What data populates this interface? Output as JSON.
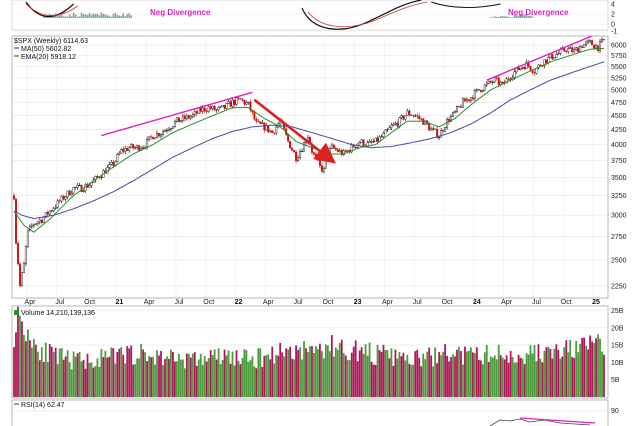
{
  "chart_data": {
    "type": "candlestick",
    "frequency": "weekly",
    "x_axis": {
      "labels": [
        "Apr",
        "Jul",
        "Oct",
        "21",
        "Apr",
        "Jul",
        "Oct",
        "22",
        "Apr",
        "Jul",
        "Oct",
        "23",
        "Apr",
        "Jul",
        "Oct",
        "24",
        "Apr",
        "Jul",
        "Oct",
        "25"
      ],
      "bold": [
        false,
        false,
        false,
        true,
        false,
        false,
        false,
        true,
        false,
        false,
        false,
        true,
        false,
        false,
        false,
        true,
        false,
        false,
        false,
        true
      ]
    },
    "macd_panel": {
      "yticks": [
        "4",
        "2",
        "0",
        "-1"
      ],
      "annotations": [
        {
          "text": "Neg Divergence"
        },
        {
          "text": "Neg Divergence"
        }
      ]
    },
    "price_panel": {
      "legend": [
        {
          "label": "$SPX (Weekly) 6114.63",
          "color": "#000000"
        },
        {
          "label": "MA(50) 5602.82",
          "color": "#4a4a9c"
        },
        {
          "label": "EMA(20) 5918.12",
          "color": "#2e8b2e"
        }
      ],
      "yticks": [
        6000,
        5750,
        5500,
        5250,
        5000,
        4750,
        4500,
        4250,
        4000,
        3750,
        3500,
        3250,
        3000,
        2750,
        2500,
        2250
      ],
      "ylim": [
        2150,
        6200
      ],
      "scale": "log",
      "price_anchors": [
        [
          0,
          3250
        ],
        [
          1,
          2700
        ],
        [
          3,
          2250
        ],
        [
          5,
          2450
        ],
        [
          7,
          2800
        ],
        [
          10,
          2900
        ],
        [
          14,
          2950
        ],
        [
          18,
          3050
        ],
        [
          22,
          3150
        ],
        [
          26,
          3250
        ],
        [
          30,
          3350
        ],
        [
          34,
          3350
        ],
        [
          38,
          3400
        ],
        [
          42,
          3500
        ],
        [
          46,
          3600
        ],
        [
          50,
          3700
        ],
        [
          54,
          3900
        ],
        [
          58,
          3950
        ],
        [
          62,
          3950
        ],
        [
          66,
          4000
        ],
        [
          70,
          4150
        ],
        [
          74,
          4200
        ],
        [
          78,
          4300
        ],
        [
          82,
          4400
        ],
        [
          86,
          4450
        ],
        [
          90,
          4500
        ],
        [
          94,
          4600
        ],
        [
          98,
          4650
        ],
        [
          102,
          4600
        ],
        [
          106,
          4650
        ],
        [
          110,
          4750
        ],
        [
          114,
          4800
        ],
        [
          118,
          4700
        ],
        [
          122,
          4350
        ],
        [
          126,
          4300
        ],
        [
          130,
          4200
        ],
        [
          134,
          4400
        ],
        [
          138,
          4050
        ],
        [
          142,
          3800
        ],
        [
          145,
          3950
        ],
        [
          148,
          4150
        ],
        [
          150,
          3900
        ],
        [
          152,
          3750
        ],
        [
          154,
          3650
        ],
        [
          156,
          3600
        ],
        [
          158,
          3850
        ],
        [
          160,
          3950
        ],
        [
          163,
          3900
        ],
        [
          166,
          3850
        ],
        [
          170,
          3950
        ],
        [
          174,
          4050
        ],
        [
          178,
          4000
        ],
        [
          182,
          4050
        ],
        [
          186,
          4150
        ],
        [
          190,
          4300
        ],
        [
          194,
          4400
        ],
        [
          198,
          4550
        ],
        [
          202,
          4500
        ],
        [
          206,
          4400
        ],
        [
          210,
          4250
        ],
        [
          214,
          4150
        ],
        [
          218,
          4400
        ],
        [
          222,
          4550
        ],
        [
          226,
          4750
        ],
        [
          230,
          4850
        ],
        [
          234,
          5000
        ],
        [
          238,
          5100
        ],
        [
          242,
          5200
        ],
        [
          246,
          5100
        ],
        [
          250,
          5300
        ],
        [
          254,
          5450
        ],
        [
          258,
          5550
        ],
        [
          262,
          5400
        ],
        [
          266,
          5600
        ],
        [
          270,
          5700
        ],
        [
          274,
          5800
        ],
        [
          278,
          5900
        ],
        [
          282,
          5850
        ],
        [
          286,
          6000
        ],
        [
          290,
          6050
        ],
        [
          294,
          5950
        ],
        [
          297,
          6114
        ]
      ],
      "ma50_anchors": [
        [
          0,
          3050
        ],
        [
          4,
          3000
        ],
        [
          10,
          2960
        ],
        [
          20,
          3000
        ],
        [
          30,
          3080
        ],
        [
          40,
          3180
        ],
        [
          50,
          3300
        ],
        [
          60,
          3450
        ],
        [
          70,
          3620
        ],
        [
          80,
          3800
        ],
        [
          90,
          3950
        ],
        [
          100,
          4100
        ],
        [
          110,
          4220
        ],
        [
          120,
          4300
        ],
        [
          130,
          4330
        ],
        [
          140,
          4300
        ],
        [
          150,
          4200
        ],
        [
          160,
          4100
        ],
        [
          170,
          4000
        ],
        [
          180,
          3950
        ],
        [
          190,
          3970
        ],
        [
          200,
          4030
        ],
        [
          210,
          4100
        ],
        [
          220,
          4200
        ],
        [
          230,
          4350
        ],
        [
          240,
          4550
        ],
        [
          250,
          4800
        ],
        [
          260,
          5000
        ],
        [
          270,
          5200
        ],
        [
          280,
          5350
        ],
        [
          290,
          5500
        ],
        [
          297,
          5602
        ]
      ],
      "ema20_anchors": [
        [
          0,
          3050
        ],
        [
          5,
          2880
        ],
        [
          10,
          2800
        ],
        [
          18,
          2950
        ],
        [
          30,
          3250
        ],
        [
          40,
          3450
        ],
        [
          50,
          3650
        ],
        [
          60,
          3850
        ],
        [
          70,
          4000
        ],
        [
          80,
          4200
        ],
        [
          90,
          4350
        ],
        [
          100,
          4500
        ],
        [
          110,
          4650
        ],
        [
          118,
          4650
        ],
        [
          126,
          4450
        ],
        [
          134,
          4300
        ],
        [
          142,
          4050
        ],
        [
          150,
          3950
        ],
        [
          158,
          3850
        ],
        [
          166,
          3850
        ],
        [
          174,
          3950
        ],
        [
          182,
          4000
        ],
        [
          190,
          4200
        ],
        [
          198,
          4400
        ],
        [
          206,
          4400
        ],
        [
          214,
          4300
        ],
        [
          222,
          4450
        ],
        [
          230,
          4700
        ],
        [
          240,
          5000
        ],
        [
          250,
          5200
        ],
        [
          260,
          5400
        ],
        [
          270,
          5600
        ],
        [
          280,
          5750
        ],
        [
          290,
          5900
        ],
        [
          297,
          5918
        ]
      ],
      "trendlines": [
        {
          "color": "#e020c0",
          "points": [
            [
              44,
              4150
            ],
            [
              120,
              4950
            ]
          ]
        },
        {
          "color": "#e020c0",
          "points": [
            [
              238,
              5200
            ],
            [
              292,
              6250
            ]
          ]
        },
        {
          "color": "#dd2020",
          "arrow": true,
          "points": [
            [
              121,
              4800
            ],
            [
              160,
              3750
            ]
          ]
        }
      ]
    },
    "volume_panel": {
      "legend": "Volume 14,210,139,136",
      "yticks": [
        "25B",
        "20B",
        "15B",
        "10B",
        "5B"
      ],
      "ylim_billions": [
        0,
        26
      ],
      "anchors": [
        [
          0,
          20
        ],
        [
          3,
          24
        ],
        [
          8,
          18
        ],
        [
          12,
          15
        ],
        [
          20,
          12
        ],
        [
          30,
          11
        ],
        [
          40,
          11
        ],
        [
          50,
          12
        ],
        [
          60,
          13
        ],
        [
          70,
          12
        ],
        [
          80,
          12
        ],
        [
          90,
          11
        ],
        [
          100,
          12
        ],
        [
          110,
          12
        ],
        [
          120,
          11
        ],
        [
          130,
          13
        ],
        [
          140,
          14
        ],
        [
          150,
          14
        ],
        [
          160,
          15
        ],
        [
          170,
          14
        ],
        [
          180,
          13
        ],
        [
          190,
          12
        ],
        [
          200,
          11
        ],
        [
          210,
          12
        ],
        [
          220,
          13
        ],
        [
          230,
          12
        ],
        [
          240,
          13
        ],
        [
          250,
          12
        ],
        [
          260,
          13
        ],
        [
          270,
          13
        ],
        [
          280,
          14
        ],
        [
          290,
          15
        ],
        [
          297,
          16
        ]
      ]
    },
    "rsi_panel": {
      "legend": "RSI(14) 62.47",
      "yticks": [
        "90"
      ]
    }
  }
}
